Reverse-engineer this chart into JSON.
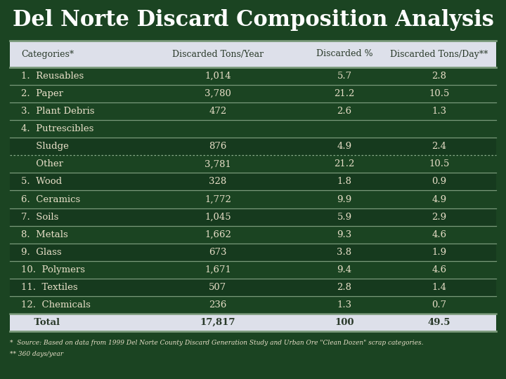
{
  "title": "Del Norte Discard Composition Analysis",
  "headers": [
    "Categories*",
    "Discarded Tons/Year",
    "Discarded %",
    "Discarded Tons/Day**"
  ],
  "rows": [
    {
      "label": "1.  Reusables",
      "tons_year": "1,014",
      "pct": "5.7",
      "tons_day": "2.8",
      "is_sub": false,
      "is_total": false,
      "dotted_below": false,
      "no_data": false
    },
    {
      "label": "2.  Paper",
      "tons_year": "3,780",
      "pct": "21.2",
      "tons_day": "10.5",
      "is_sub": false,
      "is_total": false,
      "dotted_below": false,
      "no_data": false
    },
    {
      "label": "3.  Plant Debris",
      "tons_year": "472",
      "pct": "2.6",
      "tons_day": "1.3",
      "is_sub": false,
      "is_total": false,
      "dotted_below": false,
      "no_data": false
    },
    {
      "label": "4.  Putrescibles",
      "tons_year": "",
      "pct": "",
      "tons_day": "",
      "is_sub": false,
      "is_total": false,
      "dotted_below": false,
      "no_data": true
    },
    {
      "label": "     Sludge",
      "tons_year": "876",
      "pct": "4.9",
      "tons_day": "2.4",
      "is_sub": true,
      "is_total": false,
      "dotted_below": true,
      "no_data": false
    },
    {
      "label": "     Other",
      "tons_year": "3,781",
      "pct": "21.2",
      "tons_day": "10.5",
      "is_sub": true,
      "is_total": false,
      "dotted_below": false,
      "no_data": false
    },
    {
      "label": "5.  Wood",
      "tons_year": "328",
      "pct": "1.8",
      "tons_day": "0.9",
      "is_sub": false,
      "is_total": false,
      "dotted_below": false,
      "no_data": false
    },
    {
      "label": "6.  Ceramics",
      "tons_year": "1,772",
      "pct": "9.9",
      "tons_day": "4.9",
      "is_sub": false,
      "is_total": false,
      "dotted_below": false,
      "no_data": false
    },
    {
      "label": "7.  Soils",
      "tons_year": "1,045",
      "pct": "5.9",
      "tons_day": "2.9",
      "is_sub": false,
      "is_total": false,
      "dotted_below": false,
      "no_data": false
    },
    {
      "label": "8.  Metals",
      "tons_year": "1,662",
      "pct": "9.3",
      "tons_day": "4.6",
      "is_sub": false,
      "is_total": false,
      "dotted_below": false,
      "no_data": false
    },
    {
      "label": "9.  Glass",
      "tons_year": "673",
      "pct": "3.8",
      "tons_day": "1.9",
      "is_sub": false,
      "is_total": false,
      "dotted_below": false,
      "no_data": false
    },
    {
      "label": "10.  Polymers",
      "tons_year": "1,671",
      "pct": "9.4",
      "tons_day": "4.6",
      "is_sub": false,
      "is_total": false,
      "dotted_below": false,
      "no_data": false
    },
    {
      "label": "11.  Textiles",
      "tons_year": "507",
      "pct": "2.8",
      "tons_day": "1.4",
      "is_sub": false,
      "is_total": false,
      "dotted_below": false,
      "no_data": false
    },
    {
      "label": "12.  Chemicals",
      "tons_year": "236",
      "pct": "1.3",
      "tons_day": "0.7",
      "is_sub": false,
      "is_total": false,
      "dotted_below": false,
      "no_data": false
    },
    {
      "label": "    Total",
      "tons_year": "17,817",
      "pct": "100",
      "tons_day": "49.5",
      "is_sub": false,
      "is_total": true,
      "dotted_below": false,
      "no_data": false
    }
  ],
  "footnote1": "*  Source: Based on data from 1999 Del Norte County Discard Generation Study and Urban Ore \"Clean Dozen\" scrap categories.",
  "footnote2": "** 360 days/year",
  "bg_color": "#1b4422",
  "header_bg": "#dde0ea",
  "total_bg": "#dde0ea",
  "row_bg_dark": "#163a1e",
  "table_text_color": "#e8dfc8",
  "header_text_color": "#2a3a2a",
  "total_text_color": "#2a3a2a",
  "title_color": "#ffffff",
  "sep_color": "#7a9a7a",
  "sep_color2": "#5a7a5a",
  "dotted_color": "#8aaa8a"
}
